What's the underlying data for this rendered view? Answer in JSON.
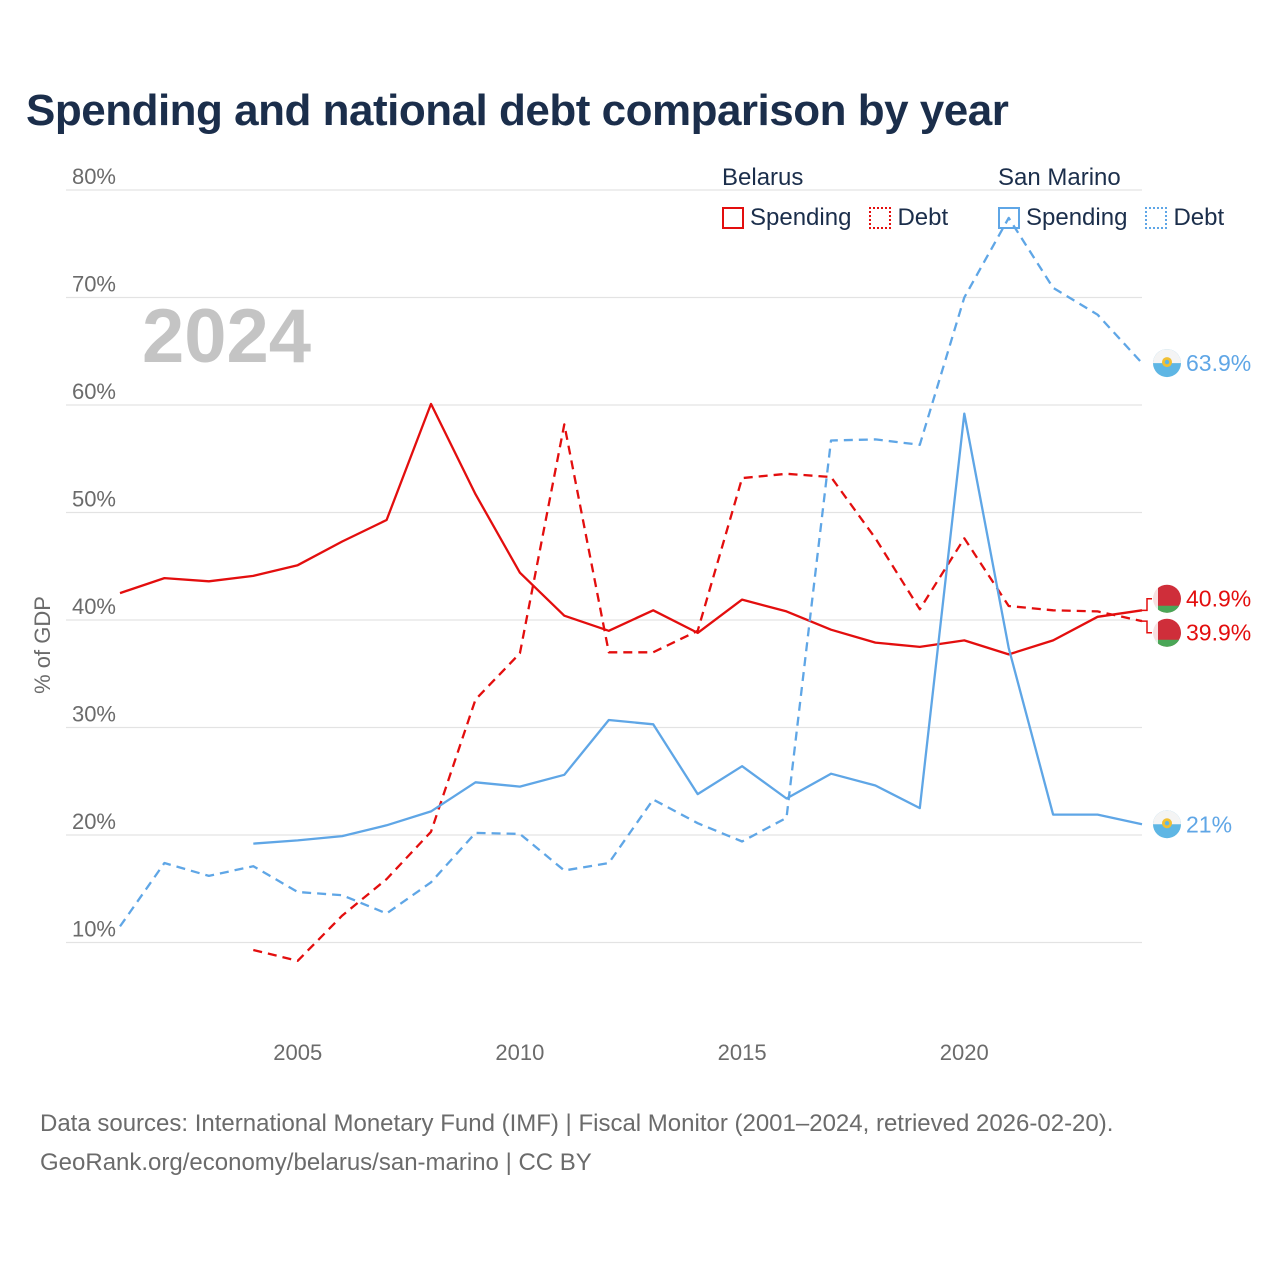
{
  "title": "Spending and national debt comparison by year",
  "legend": {
    "groups": [
      {
        "name": "Belarus",
        "items": [
          "Spending",
          "Debt"
        ]
      },
      {
        "name": "San Marino",
        "items": [
          "Spending",
          "Debt"
        ]
      }
    ]
  },
  "footer": {
    "line1": "Data sources: International Monetary Fund (IMF) | Fiscal Monitor (2001–2024, retrieved 2026-02-20).",
    "line2": "GeoRank.org/economy/belarus/san-marino | CC BY"
  },
  "colors": {
    "belarus": "#e30e0e",
    "sanmarino": "#5fa6e6",
    "grid": "#e3e3e3",
    "axis_text": "#6b6b6b",
    "year_label": "#c4c4c4"
  },
  "chart_data": {
    "type": "line",
    "year_label": "2024",
    "ylabel": "% of GDP",
    "xlim": [
      2001,
      2024
    ],
    "ylim": [
      0,
      80
    ],
    "x_ticks": [
      2005,
      2010,
      2015,
      2020
    ],
    "x_tick_labels": [
      "2005",
      "2010",
      "2015",
      "2020"
    ],
    "y_ticks": [
      10,
      20,
      30,
      40,
      50,
      60,
      70,
      80
    ],
    "y_tick_labels": [
      "10%",
      "20%",
      "30%",
      "40%",
      "50%",
      "60%",
      "70%",
      "80%"
    ],
    "series": [
      {
        "name": "Belarus Spending",
        "country": "belarus",
        "style": "solid",
        "x": [
          2001,
          2002,
          2003,
          2004,
          2005,
          2006,
          2007,
          2008,
          2009,
          2010,
          2011,
          2012,
          2013,
          2014,
          2015,
          2016,
          2017,
          2018,
          2019,
          2020,
          2021,
          2022,
          2023,
          2024
        ],
        "values": [
          42.5,
          43.9,
          43.6,
          44.1,
          45.1,
          47.3,
          49.3,
          60.1,
          51.7,
          44.4,
          40.4,
          39.0,
          40.9,
          38.8,
          41.9,
          40.8,
          39.1,
          37.9,
          37.5,
          38.1,
          36.8,
          38.1,
          40.3,
          40.9
        ],
        "end_label": "40.9%"
      },
      {
        "name": "Belarus Debt",
        "country": "belarus",
        "style": "dashed",
        "x": [
          2004,
          2005,
          2006,
          2007,
          2008,
          2009,
          2010,
          2011,
          2012,
          2013,
          2014,
          2015,
          2016,
          2017,
          2018,
          2019,
          2020,
          2021,
          2022,
          2023,
          2024
        ],
        "values": [
          9.3,
          8.3,
          12.5,
          15.9,
          20.3,
          32.6,
          36.9,
          58.2,
          37.0,
          37.0,
          39.0,
          53.2,
          53.6,
          53.3,
          47.6,
          41.0,
          47.6,
          41.3,
          40.9,
          40.8,
          39.9
        ],
        "end_label": "39.9%"
      },
      {
        "name": "San Marino Spending",
        "country": "sanmarino",
        "style": "solid",
        "x": [
          2004,
          2005,
          2006,
          2007,
          2008,
          2009,
          2010,
          2011,
          2012,
          2013,
          2014,
          2015,
          2016,
          2017,
          2018,
          2019,
          2020,
          2021,
          2022,
          2023,
          2024
        ],
        "values": [
          19.2,
          19.5,
          19.9,
          20.9,
          22.2,
          24.9,
          24.5,
          25.6,
          30.7,
          30.3,
          23.8,
          26.4,
          23.4,
          25.7,
          24.6,
          22.5,
          59.2,
          37.4,
          21.9,
          21.9,
          21.0
        ],
        "end_label": "21%"
      },
      {
        "name": "San Marino Debt",
        "country": "sanmarino",
        "style": "dashed",
        "x": [
          2001,
          2002,
          2003,
          2004,
          2005,
          2006,
          2007,
          2008,
          2009,
          2010,
          2011,
          2012,
          2013,
          2014,
          2015,
          2016,
          2017,
          2018,
          2019,
          2020,
          2021,
          2022,
          2023,
          2024
        ],
        "values": [
          11.5,
          17.4,
          16.2,
          17.1,
          14.7,
          14.4,
          12.7,
          15.6,
          20.2,
          20.1,
          16.7,
          17.4,
          23.3,
          21.1,
          19.4,
          21.6,
          56.7,
          56.8,
          56.3,
          70.0,
          77.4,
          70.9,
          68.4,
          63.9
        ],
        "end_label": "63.9%"
      }
    ]
  }
}
